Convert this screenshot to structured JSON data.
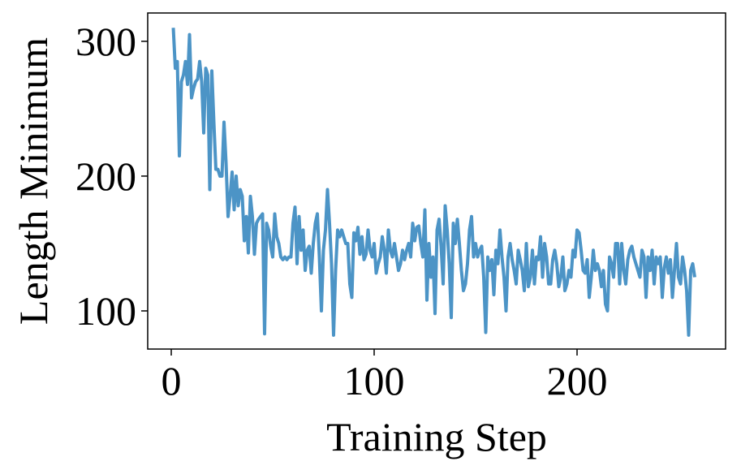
{
  "chart_data": {
    "type": "line",
    "xlabel": "Training Step",
    "ylabel": "Length Minimum",
    "x": [
      1,
      2,
      3,
      4,
      5,
      6,
      7,
      8,
      9,
      10,
      11,
      12,
      13,
      14,
      15,
      16,
      17,
      18,
      19,
      20,
      21,
      22,
      23,
      24,
      25,
      26,
      27,
      28,
      29,
      30,
      31,
      32,
      33,
      34,
      35,
      36,
      37,
      38,
      39,
      40,
      41,
      42,
      43,
      44,
      45,
      46,
      47,
      48,
      49,
      50,
      51,
      52,
      53,
      54,
      55,
      56,
      57,
      58,
      59,
      60,
      61,
      62,
      63,
      64,
      65,
      66,
      67,
      68,
      69,
      70,
      71,
      72,
      73,
      74,
      75,
      76,
      77,
      78,
      79,
      80,
      81,
      82,
      83,
      84,
      85,
      86,
      87,
      88,
      89,
      90,
      91,
      92,
      93,
      94,
      95,
      96,
      97,
      98,
      99,
      100,
      101,
      102,
      103,
      104,
      105,
      106,
      107,
      108,
      109,
      110,
      111,
      112,
      113,
      114,
      115,
      116,
      117,
      118,
      119,
      120,
      121,
      122,
      123,
      124,
      125,
      126,
      127,
      128,
      129,
      130,
      131,
      132,
      133,
      134,
      135,
      136,
      137,
      138,
      139,
      140,
      141,
      142,
      143,
      144,
      145,
      146,
      147,
      148,
      149,
      150,
      151,
      152,
      153,
      154,
      155,
      156,
      157,
      158,
      159,
      160,
      161,
      162,
      163,
      164,
      165,
      166,
      167,
      168,
      169,
      170,
      171,
      172,
      173,
      174,
      175,
      176,
      177,
      178,
      179,
      180,
      181,
      182,
      183,
      184,
      185,
      186,
      187,
      188,
      189,
      190,
      191,
      192,
      193,
      194,
      195,
      196,
      197,
      198,
      199,
      200,
      201,
      202,
      203,
      204,
      205,
      206,
      207,
      208,
      209,
      210,
      211,
      212,
      213,
      214,
      215,
      216,
      217,
      218,
      219,
      220,
      221,
      222,
      223,
      224,
      225,
      226,
      227,
      228,
      229,
      230,
      231,
      232,
      233,
      234,
      235,
      236,
      237,
      238,
      239,
      240,
      241,
      242,
      243,
      244,
      245,
      246,
      247,
      248,
      249,
      250,
      251,
      252,
      253,
      254,
      255,
      256,
      257,
      258
    ],
    "series": [
      {
        "color": "#4c94c6",
        "values": [
          310,
          280,
          285,
          215,
          270,
          275,
          285,
          268,
          305,
          258,
          265,
          270,
          272,
          285,
          270,
          232,
          280,
          275,
          190,
          278,
          240,
          205,
          205,
          200,
          200,
          240,
          210,
          170,
          185,
          203,
          175,
          200,
          178,
          190,
          185,
          152,
          170,
          143,
          185,
          170,
          142,
          165,
          168,
          170,
          172,
          83,
          165,
          160,
          148,
          140,
          172,
          155,
          150,
          140,
          138,
          140,
          138,
          140,
          140,
          165,
          177,
          135,
          170,
          145,
          160,
          130,
          145,
          148,
          128,
          150,
          165,
          172,
          140,
          100,
          145,
          160,
          190,
          165,
          135,
          82,
          130,
          160,
          155,
          160,
          155,
          150,
          150,
          120,
          110,
          158,
          152,
          162,
          142,
          155,
          138,
          142,
          160,
          145,
          140,
          150,
          128,
          135,
          140,
          155,
          145,
          128,
          160,
          145,
          140,
          150,
          140,
          130,
          135,
          145,
          138,
          145,
          150,
          140,
          165,
          152,
          162,
          163,
          150,
          140,
          175,
          108,
          150,
          125,
          140,
          98,
          160,
          168,
          148,
          120,
          178,
          160,
          135,
          95,
          165,
          150,
          168,
          150,
          130,
          115,
          120,
          135,
          160,
          170,
          140,
          150,
          140,
          145,
          148,
          125,
          84,
          140,
          130,
          138,
          112,
          145,
          135,
          160,
          140,
          125,
          100,
          140,
          150,
          138,
          130,
          120,
          145,
          138,
          130,
          115,
          150,
          118,
          125,
          145,
          120,
          140,
          138,
          155,
          125,
          150,
          140,
          120,
          120,
          138,
          145,
          135,
          118,
          125,
          140,
          115,
          120,
          130,
          125,
          145,
          140,
          160,
          158,
          145,
          130,
          128,
          138,
          110,
          125,
          145,
          130,
          135,
          130,
          118,
          130,
          105,
          100,
          140,
          135,
          125,
          150,
          150,
          120,
          150,
          130,
          120,
          138,
          145,
          148,
          140,
          135,
          130,
          125,
          145,
          140,
          110,
          140,
          130,
          145,
          120,
          140,
          135,
          140,
          110,
          132,
          140,
          128,
          138,
          110,
          130,
          150,
          125,
          120,
          140,
          130,
          115,
          82,
          130,
          135,
          125
        ]
      }
    ],
    "xlim": [
      -11.6,
      273.2
    ],
    "ylim": [
      71.7,
      321
    ],
    "xticks": [
      0,
      100,
      200
    ],
    "yticks": [
      100,
      200,
      300
    ]
  }
}
